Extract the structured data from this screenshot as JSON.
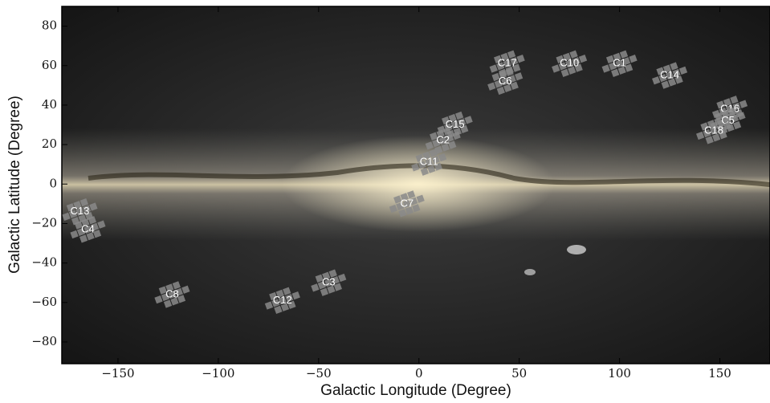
{
  "chart_data": {
    "type": "scatter",
    "xlabel": "Galactic Longitude (Degree)",
    "ylabel": "Galactic Latitude (Degree)",
    "labels": [
      "C17",
      "C6",
      "C10",
      "C1",
      "C14",
      "C16",
      "C5",
      "C18",
      "C15",
      "C2",
      "C11",
      "C7",
      "C13",
      "C4",
      "C8",
      "C12",
      "C3"
    ],
    "x": [
      44,
      43,
      75,
      100,
      125,
      155,
      154,
      147,
      18,
      12,
      5,
      -6,
      -169,
      -165,
      -123,
      -68,
      -45
    ],
    "y": [
      61,
      52,
      61,
      61,
      55,
      38,
      32,
      27,
      30,
      22,
      11,
      -10,
      -14,
      -23,
      -56,
      -59,
      -50
    ],
    "color": "#8a8a8a",
    "xlim": [
      -178,
      175
    ],
    "ylim": [
      -91,
      90
    ],
    "xticks": [
      {
        "value": -150,
        "label": "−150"
      },
      {
        "value": -100,
        "label": "−100"
      },
      {
        "value": -50,
        "label": "−50"
      },
      0,
      50,
      100,
      150
    ],
    "yticks": [
      {
        "value": -80,
        "label": "−80"
      },
      {
        "value": -60,
        "label": "−60"
      },
      {
        "value": -40,
        "label": "−40"
      },
      {
        "value": -20,
        "label": "−20"
      },
      0,
      20,
      40,
      60,
      80
    ]
  }
}
